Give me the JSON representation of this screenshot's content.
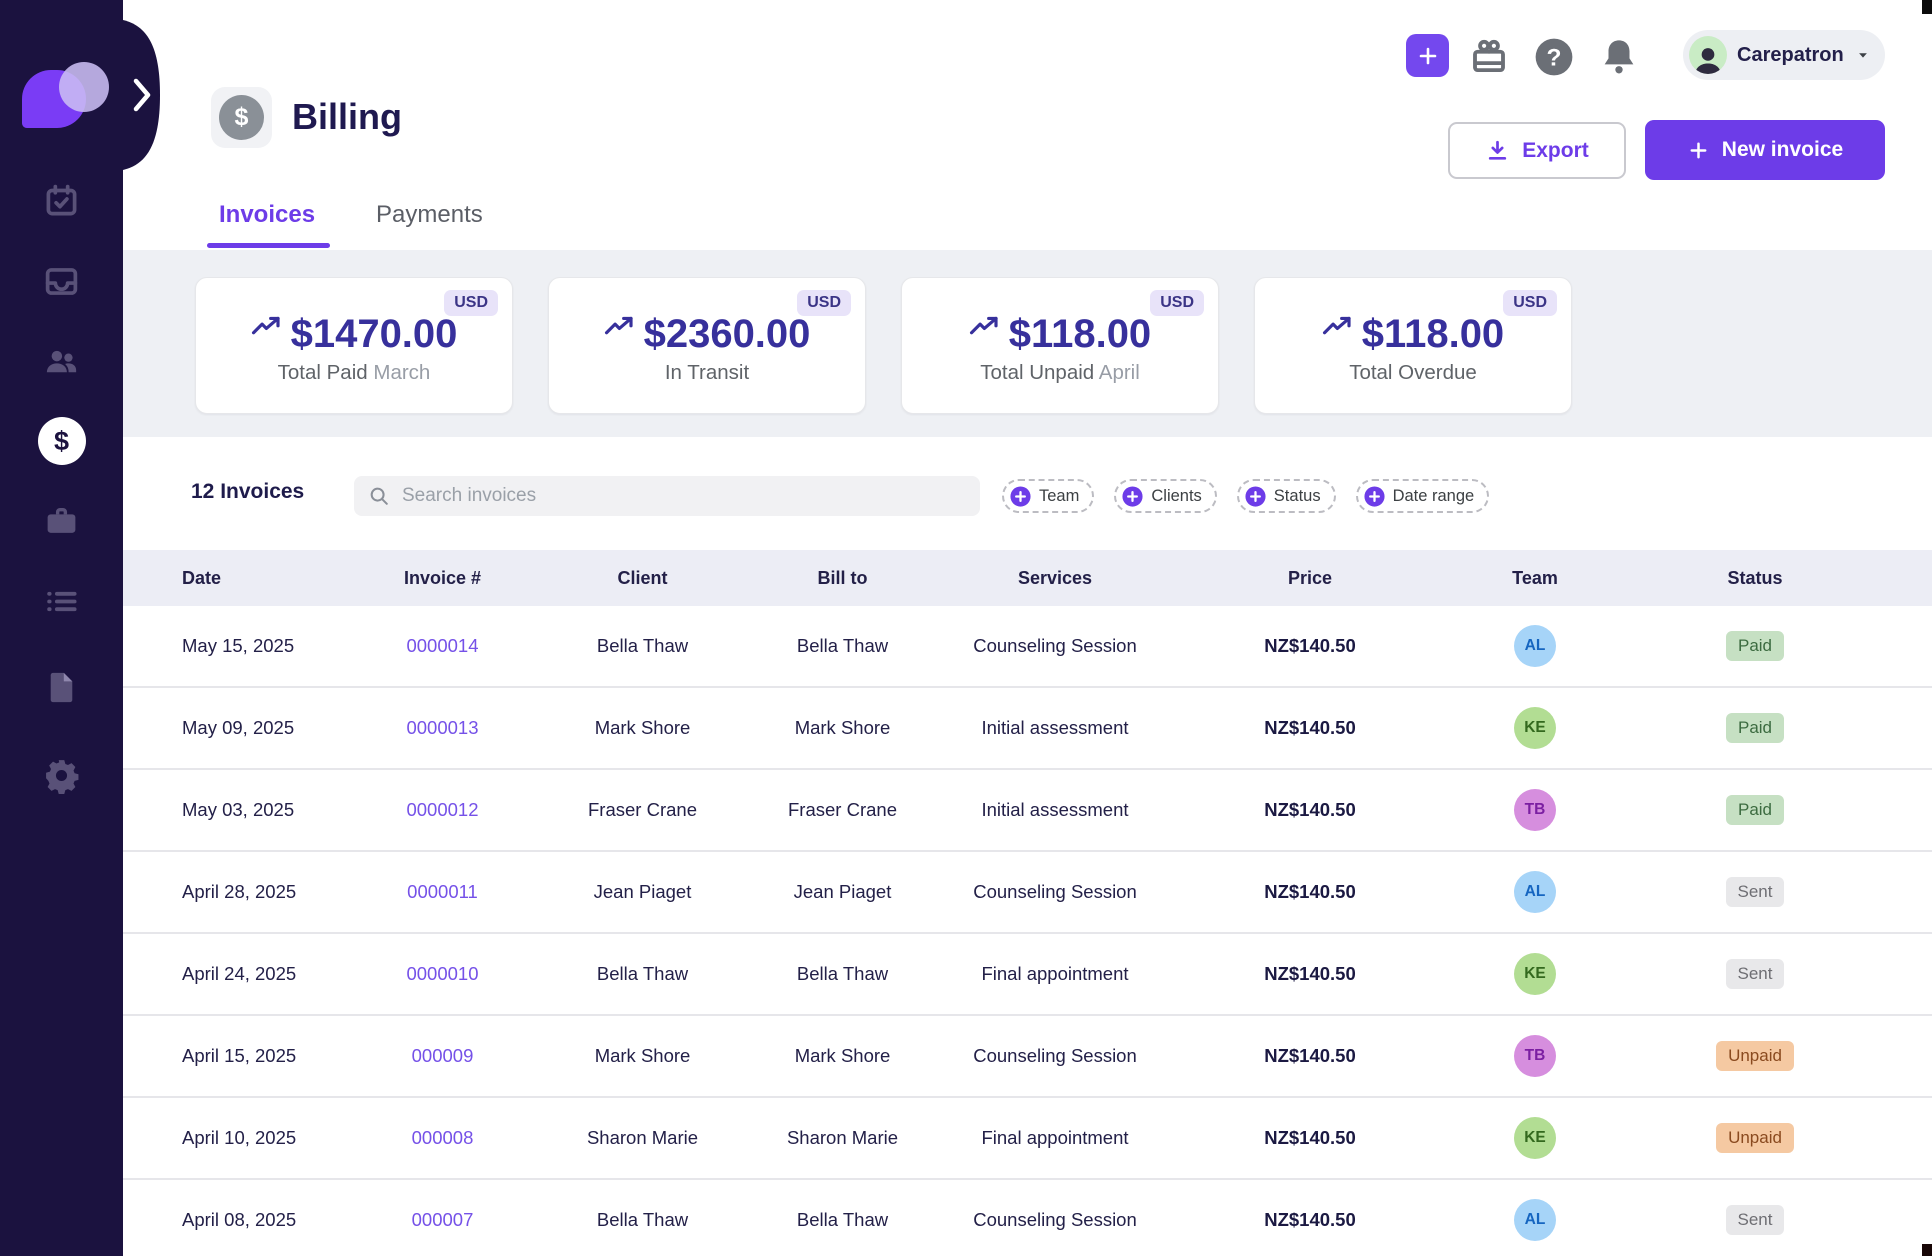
{
  "page": {
    "title": "Billing"
  },
  "topbar": {
    "account": {
      "name": "Carepatron"
    },
    "icons": [
      "quick-add-icon",
      "gift-icon",
      "help-icon",
      "bell-icon"
    ]
  },
  "actions": {
    "export_label": "Export",
    "new_invoice_label": "New invoice"
  },
  "tabs": [
    {
      "label": "Invoices",
      "active": true
    },
    {
      "label": "Payments",
      "active": false
    }
  ],
  "summary_cards": [
    {
      "amount": "$1470.00",
      "currency": "USD",
      "label": "Total Paid",
      "period": "March",
      "icon": "trend-up-icon"
    },
    {
      "amount": "$2360.00",
      "currency": "USD",
      "label": "In Transit",
      "period": "",
      "icon": "trend-up-icon"
    },
    {
      "amount": "$118.00",
      "currency": "USD",
      "label": "Total Unpaid",
      "period": "April",
      "icon": "trend-up-icon"
    },
    {
      "amount": "$118.00",
      "currency": "USD",
      "label": "Total Overdue",
      "period": "",
      "icon": "trend-up-icon"
    }
  ],
  "toolbar": {
    "count_label": "12 Invoices",
    "search_placeholder": "Search invoices",
    "filters": [
      {
        "label": "Team"
      },
      {
        "label": "Clients"
      },
      {
        "label": "Status"
      },
      {
        "label": "Date range"
      }
    ]
  },
  "table": {
    "columns": [
      "Date",
      "Invoice #",
      "Client",
      "Bill to",
      "Services",
      "Price",
      "Team",
      "Status"
    ],
    "rows": [
      {
        "date": "May 15, 2025",
        "invoice": "0000014",
        "client": "Bella Thaw",
        "bill_to": "Bella Thaw",
        "services": "Counseling Session",
        "price": "NZ$140.50",
        "team": {
          "initials": "AL",
          "color": "blue"
        },
        "status": "Paid"
      },
      {
        "date": "May 09, 2025",
        "invoice": "0000013",
        "client": "Mark Shore",
        "bill_to": "Mark Shore",
        "services": "Initial assessment",
        "price": "NZ$140.50",
        "team": {
          "initials": "KE",
          "color": "green"
        },
        "status": "Paid"
      },
      {
        "date": "May 03, 2025",
        "invoice": "0000012",
        "client": "Fraser Crane",
        "bill_to": "Fraser Crane",
        "services": "Initial assessment",
        "price": "NZ$140.50",
        "team": {
          "initials": "TB",
          "color": "purple"
        },
        "status": "Paid"
      },
      {
        "date": "April 28, 2025",
        "invoice": "0000011",
        "client": "Jean Piaget",
        "bill_to": "Jean Piaget",
        "services": "Counseling Session",
        "price": "NZ$140.50",
        "team": {
          "initials": "AL",
          "color": "blue"
        },
        "status": "Sent"
      },
      {
        "date": "April 24, 2025",
        "invoice": "0000010",
        "client": "Bella Thaw",
        "bill_to": "Bella Thaw",
        "services": "Final appointment",
        "price": "NZ$140.50",
        "team": {
          "initials": "KE",
          "color": "green"
        },
        "status": "Sent"
      },
      {
        "date": "April 15, 2025",
        "invoice": "000009",
        "client": "Mark Shore",
        "bill_to": "Mark Shore",
        "services": "Counseling Session",
        "price": "NZ$140.50",
        "team": {
          "initials": "TB",
          "color": "purple"
        },
        "status": "Unpaid"
      },
      {
        "date": "April 10, 2025",
        "invoice": "000008",
        "client": "Sharon Marie",
        "bill_to": "Sharon Marie",
        "services": "Final appointment",
        "price": "NZ$140.50",
        "team": {
          "initials": "KE",
          "color": "green"
        },
        "status": "Unpaid"
      },
      {
        "date": "April 08, 2025",
        "invoice": "000007",
        "client": "Bella Thaw",
        "bill_to": "Bella Thaw",
        "services": "Counseling Session",
        "price": "NZ$140.50",
        "team": {
          "initials": "AL",
          "color": "blue"
        },
        "status": "Sent"
      }
    ]
  },
  "sidebar": {
    "items": [
      {
        "name": "calendar",
        "icon": "calendar-icon",
        "active": false
      },
      {
        "name": "inbox",
        "icon": "inbox-icon",
        "active": false
      },
      {
        "name": "clients",
        "icon": "clients-icon",
        "active": false
      },
      {
        "name": "billing",
        "icon": "dollar-icon",
        "active": true
      },
      {
        "name": "services",
        "icon": "briefcase-icon",
        "active": false
      },
      {
        "name": "lists",
        "icon": "list-icon",
        "active": false
      },
      {
        "name": "templates",
        "icon": "file-icon",
        "active": false
      },
      {
        "name": "settings",
        "icon": "gear-icon",
        "active": false
      }
    ]
  },
  "colors": {
    "accent": "#6d3ce8",
    "sidebar_bg": "#1b123f",
    "amount_text": "#37309c",
    "status": {
      "Paid": {
        "bg": "#c6e0c3",
        "text": "#3c6b40"
      },
      "Sent": {
        "bg": "#e8e8ea",
        "text": "#6e6e73"
      },
      "Unpaid": {
        "bg": "#f5c9a2",
        "text": "#8a4a1f"
      }
    },
    "team": {
      "blue": {
        "bg": "#a6d4f8",
        "text": "#1565c0"
      },
      "green": {
        "bg": "#b2dd93",
        "text": "#33691e"
      },
      "purple": {
        "bg": "#d68ede",
        "text": "#7b1fa2"
      }
    }
  }
}
